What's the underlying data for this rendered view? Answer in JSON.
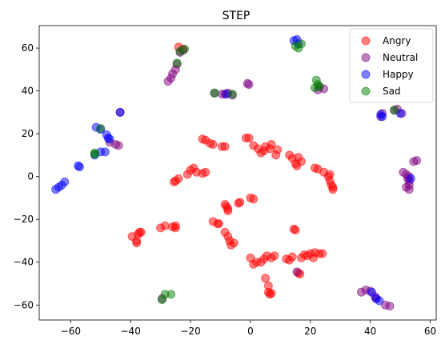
{
  "chart_data": {
    "type": "scatter",
    "title": "STEP",
    "xlabel": "",
    "ylabel": "",
    "xlim": [
      -70.5,
      62
    ],
    "ylim": [
      -67,
      70.5
    ],
    "xticks": [
      -60,
      -40,
      -20,
      0,
      20,
      40,
      60
    ],
    "yticks": [
      -60,
      -40,
      -20,
      0,
      20,
      40,
      60
    ],
    "grid": false,
    "legend_position": "top-right",
    "series": [
      {
        "name": "Angry",
        "color": "#ff0000",
        "points": [
          [
            -24,
            60.5
          ],
          [
            -22.5,
            59.5
          ],
          [
            -16,
            17.5
          ],
          [
            -15,
            17
          ],
          [
            -13.5,
            15.5
          ],
          [
            -12.5,
            15
          ],
          [
            -9.5,
            14
          ],
          [
            -8.5,
            14
          ],
          [
            -21,
            1
          ],
          [
            -20,
            3
          ],
          [
            -19,
            4
          ],
          [
            -18,
            2
          ],
          [
            -16,
            1.5
          ],
          [
            -15,
            2
          ],
          [
            -25.5,
            -2.5
          ],
          [
            -25,
            -2
          ],
          [
            -24,
            -1
          ],
          [
            -1.5,
            18
          ],
          [
            -0.5,
            18
          ],
          [
            1,
            14.5
          ],
          [
            2.5,
            13
          ],
          [
            3.5,
            11
          ],
          [
            4.5,
            12
          ],
          [
            5,
            14
          ],
          [
            6.5,
            13
          ],
          [
            7,
            15
          ],
          [
            8.5,
            10
          ],
          [
            9,
            12.5
          ],
          [
            13,
            10
          ],
          [
            14,
            8.5
          ],
          [
            15,
            6
          ],
          [
            16,
            9
          ],
          [
            15.5,
            5
          ],
          [
            17,
            7
          ],
          [
            21.5,
            4
          ],
          [
            22.5,
            3.5
          ],
          [
            24.5,
            2
          ],
          [
            26,
            0
          ],
          [
            26.5,
            1
          ],
          [
            26.5,
            -2
          ],
          [
            27,
            -4
          ],
          [
            27.5,
            -5
          ],
          [
            27.5,
            -6
          ],
          [
            -8.5,
            -13
          ],
          [
            -8,
            -14
          ],
          [
            -7.5,
            -15
          ],
          [
            -7.5,
            -16
          ],
          [
            -4,
            -12.5
          ],
          [
            -3.5,
            -12
          ],
          [
            0,
            -10
          ],
          [
            1,
            -10.5
          ],
          [
            -12.5,
            -21
          ],
          [
            -11,
            -22
          ],
          [
            -10.5,
            -22
          ],
          [
            -8.5,
            -26
          ],
          [
            -7.5,
            -28
          ],
          [
            -7,
            -30
          ],
          [
            -6.5,
            -32
          ],
          [
            -5.5,
            -31
          ],
          [
            -39.5,
            -28
          ],
          [
            -38,
            -30
          ],
          [
            -38,
            -31
          ],
          [
            -37.5,
            -27
          ],
          [
            -37,
            -26
          ],
          [
            -36.5,
            -26
          ],
          [
            -30,
            -24
          ],
          [
            -28.5,
            -23
          ],
          [
            -26,
            -23.5
          ],
          [
            -25,
            -24
          ],
          [
            -25,
            -23
          ],
          [
            0,
            -38
          ],
          [
            1,
            -41
          ],
          [
            2,
            -40
          ],
          [
            3.5,
            -40
          ],
          [
            4.5,
            -38.5
          ],
          [
            5.5,
            -37
          ],
          [
            7,
            -38
          ],
          [
            8,
            -37
          ],
          [
            12,
            -38.5
          ],
          [
            13,
            -39
          ],
          [
            14,
            -37.5
          ],
          [
            14.5,
            -24.5
          ],
          [
            15,
            -25
          ],
          [
            16,
            -45
          ],
          [
            16.5,
            -45.5
          ],
          [
            17,
            -38
          ],
          [
            18,
            -36.5
          ],
          [
            19,
            -37
          ],
          [
            20,
            -36
          ],
          [
            21,
            -38
          ],
          [
            21.5,
            -35.5
          ],
          [
            23,
            -36
          ],
          [
            24,
            -36
          ],
          [
            5,
            -47.5
          ],
          [
            6,
            -51
          ],
          [
            6,
            -54
          ],
          [
            6.5,
            -55
          ],
          [
            7,
            -54.5
          ]
        ]
      },
      {
        "name": "Neutral",
        "color": "#800080",
        "points": [
          [
            -27.5,
            44.5
          ],
          [
            -26.5,
            46
          ],
          [
            -26,
            48
          ],
          [
            -25,
            50
          ],
          [
            -24.5,
            52.5
          ],
          [
            -23.5,
            58
          ],
          [
            -22.5,
            59
          ],
          [
            -12,
            39
          ],
          [
            -9.5,
            38.5
          ],
          [
            -8.5,
            38.5
          ],
          [
            -7.5,
            39
          ],
          [
            -6,
            38
          ],
          [
            -1,
            43.5
          ],
          [
            -0.5,
            43
          ],
          [
            22.5,
            40.5
          ],
          [
            23,
            42
          ],
          [
            24.5,
            41
          ],
          [
            43.5,
            28
          ],
          [
            44,
            29.5
          ],
          [
            48,
            31
          ],
          [
            49,
            31.5
          ],
          [
            50.5,
            29.5
          ],
          [
            51,
            2
          ],
          [
            52,
            1
          ],
          [
            52.5,
            -1
          ],
          [
            53,
            0
          ],
          [
            53,
            -2
          ],
          [
            53,
            -4
          ],
          [
            52,
            -5
          ],
          [
            53,
            -6
          ],
          [
            54.5,
            7
          ],
          [
            55.5,
            7.5
          ],
          [
            -47,
            16
          ],
          [
            -45,
            15
          ],
          [
            -44,
            14.5
          ],
          [
            -43.5,
            30
          ],
          [
            37,
            -54
          ],
          [
            38.5,
            -53
          ],
          [
            40,
            -53.5
          ],
          [
            41.5,
            -56
          ],
          [
            42,
            -57
          ],
          [
            45,
            -60
          ],
          [
            46.5,
            -60.5
          ],
          [
            15.5,
            -44.5
          ],
          [
            -29.5,
            -57
          ]
        ]
      },
      {
        "name": "Happy",
        "color": "#0000ff",
        "points": [
          [
            14.5,
            63.5
          ],
          [
            15.5,
            64
          ],
          [
            16,
            62
          ],
          [
            -51.5,
            23
          ],
          [
            -50,
            22
          ],
          [
            -48,
            19.5
          ],
          [
            -47.5,
            18
          ],
          [
            -47,
            17.5
          ],
          [
            -43.5,
            30
          ],
          [
            -52,
            10
          ],
          [
            -50,
            11.5
          ],
          [
            -48.5,
            11.5
          ],
          [
            -57.5,
            5
          ],
          [
            -57,
            4.5
          ],
          [
            -62,
            -2.5
          ],
          [
            -63,
            -4
          ],
          [
            -64,
            -5
          ],
          [
            -65,
            -6
          ],
          [
            43.5,
            29
          ],
          [
            44,
            28
          ],
          [
            50,
            29.5
          ],
          [
            53.5,
            -1
          ],
          [
            -8,
            38.5
          ],
          [
            42,
            -57
          ],
          [
            40.5,
            -54
          ],
          [
            43,
            -58
          ]
        ]
      },
      {
        "name": "Sad",
        "color": "#008000",
        "points": [
          [
            15,
            61
          ],
          [
            16,
            60
          ],
          [
            17,
            62
          ],
          [
            -22,
            59.5
          ],
          [
            -23.5,
            58.5
          ],
          [
            -24.5,
            53
          ],
          [
            -12,
            39
          ],
          [
            -6,
            38.5
          ],
          [
            22,
            45
          ],
          [
            22.5,
            43
          ],
          [
            23,
            42
          ],
          [
            21.5,
            41.5
          ],
          [
            -52,
            10.5
          ],
          [
            -52,
            11
          ],
          [
            -50,
            22.5
          ],
          [
            -29.5,
            -57.5
          ],
          [
            -28.5,
            -55
          ],
          [
            48,
            31
          ],
          [
            -26.5,
            -55
          ]
        ]
      }
    ]
  }
}
